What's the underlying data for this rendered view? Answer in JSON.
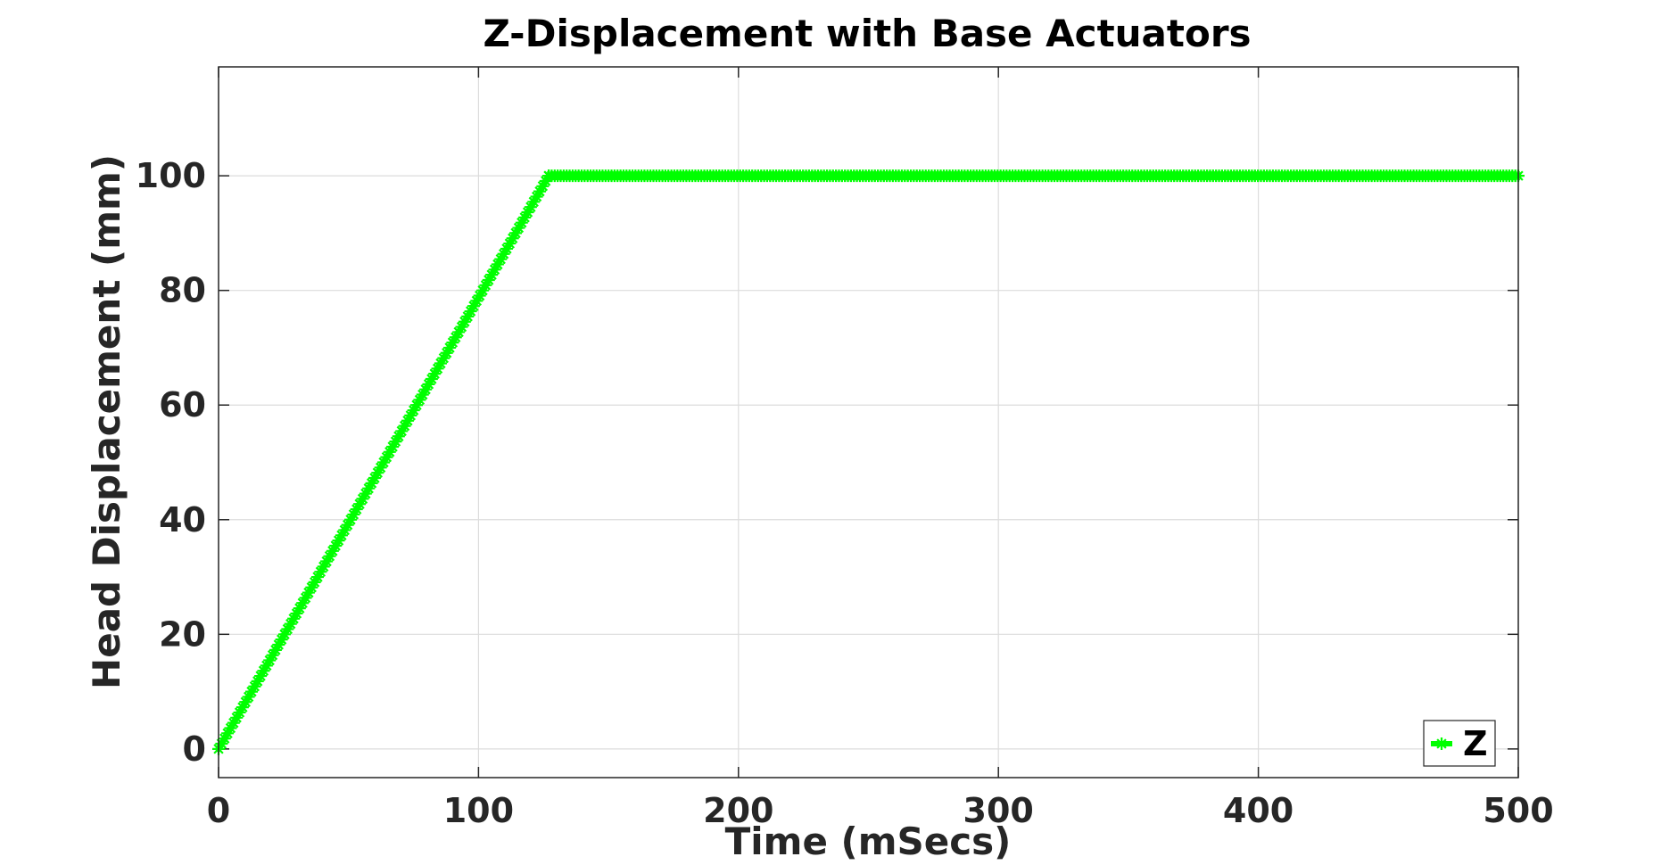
{
  "chart_data": {
    "type": "line",
    "title": "Z-Displacement with Base Actuators",
    "xlabel": "Time (mSecs)",
    "ylabel": "Head Displacement (mm)",
    "xlim": [
      0,
      500
    ],
    "ylim": [
      -5,
      119
    ],
    "xticks": [
      0,
      100,
      200,
      300,
      400,
      500
    ],
    "yticks": [
      0,
      20,
      40,
      60,
      80,
      100
    ],
    "xtick_labels": [
      "0",
      "100",
      "200",
      "300",
      "400",
      "500"
    ],
    "ytick_labels": [
      "0",
      "20",
      "40",
      "60",
      "80",
      "100"
    ],
    "grid": true,
    "box": true,
    "legend_position": "bottom-right",
    "series": [
      {
        "name": "Z",
        "color": "#00ff00",
        "marker": "asterisk",
        "x": [
          0,
          127,
          500
        ],
        "y": [
          0,
          100,
          100
        ]
      }
    ]
  }
}
